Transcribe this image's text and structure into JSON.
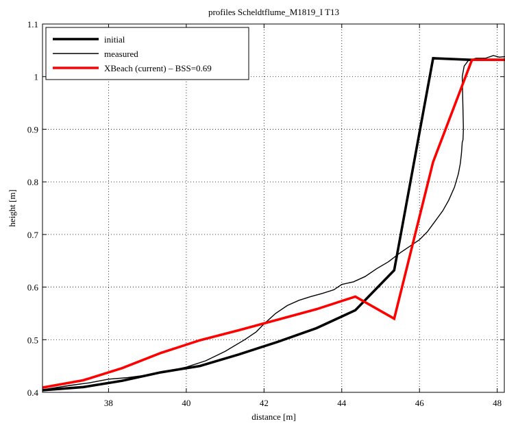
{
  "chart_data": {
    "type": "line",
    "title": "profiles Scheldtflume_M1819_I T13",
    "xlabel": "distance [m]",
    "ylabel": "height [m]",
    "xlim": [
      36.3,
      48.2
    ],
    "ylim": [
      0.4,
      1.1
    ],
    "xticks": [
      38,
      40,
      42,
      44,
      46,
      48
    ],
    "yticks": [
      0.4,
      0.5,
      0.6,
      0.7,
      0.8,
      0.9,
      1,
      1.1
    ],
    "grid": true,
    "legend_position": "top-left",
    "series": [
      {
        "name": "initial",
        "color": "#000000",
        "width": "thick",
        "x": [
          36.3,
          37.35,
          38.35,
          39.35,
          40.35,
          41.35,
          42.35,
          43.35,
          44.35,
          45.35,
          46.35,
          47.3,
          48.2
        ],
        "y": [
          0.404,
          0.41,
          0.422,
          0.438,
          0.45,
          0.472,
          0.496,
          0.522,
          0.556,
          0.632,
          1.035,
          1.032,
          1.032
        ]
      },
      {
        "name": "measured",
        "color": "#000000",
        "width": "thin",
        "x": [
          36.3,
          37.0,
          37.5,
          38.0,
          38.5,
          39.0,
          39.5,
          40.0,
          40.5,
          41.0,
          41.5,
          41.8,
          42.0,
          42.3,
          42.6,
          42.9,
          43.2,
          43.5,
          43.8,
          44.0,
          44.3,
          44.6,
          44.9,
          45.2,
          45.5,
          45.8,
          46.0,
          46.2,
          46.4,
          46.6,
          46.75,
          46.9,
          47.0,
          47.05,
          47.08,
          47.1,
          47.12,
          47.13,
          47.1,
          47.15,
          47.25,
          47.45,
          47.7,
          47.9,
          48.05,
          48.2
        ],
        "y": [
          0.405,
          0.413,
          0.418,
          0.425,
          0.428,
          0.433,
          0.44,
          0.448,
          0.46,
          0.478,
          0.5,
          0.515,
          0.53,
          0.55,
          0.565,
          0.575,
          0.582,
          0.588,
          0.595,
          0.605,
          0.61,
          0.62,
          0.635,
          0.648,
          0.665,
          0.68,
          0.69,
          0.705,
          0.725,
          0.745,
          0.765,
          0.79,
          0.815,
          0.835,
          0.855,
          0.875,
          0.88,
          0.9,
          1.0,
          1.02,
          1.03,
          1.035,
          1.035,
          1.04,
          1.037,
          1.038
        ]
      },
      {
        "name": "XBeach (current) – BSS=0.69",
        "color": "#ff0000",
        "width": "thick",
        "x": [
          36.3,
          37.35,
          38.35,
          39.35,
          40.35,
          41.35,
          42.35,
          43.35,
          44.35,
          45.35,
          46.35,
          47.35,
          48.2
        ],
        "y": [
          0.409,
          0.423,
          0.446,
          0.475,
          0.499,
          0.518,
          0.538,
          0.558,
          0.582,
          0.54,
          0.838,
          1.032,
          1.032
        ]
      }
    ]
  }
}
